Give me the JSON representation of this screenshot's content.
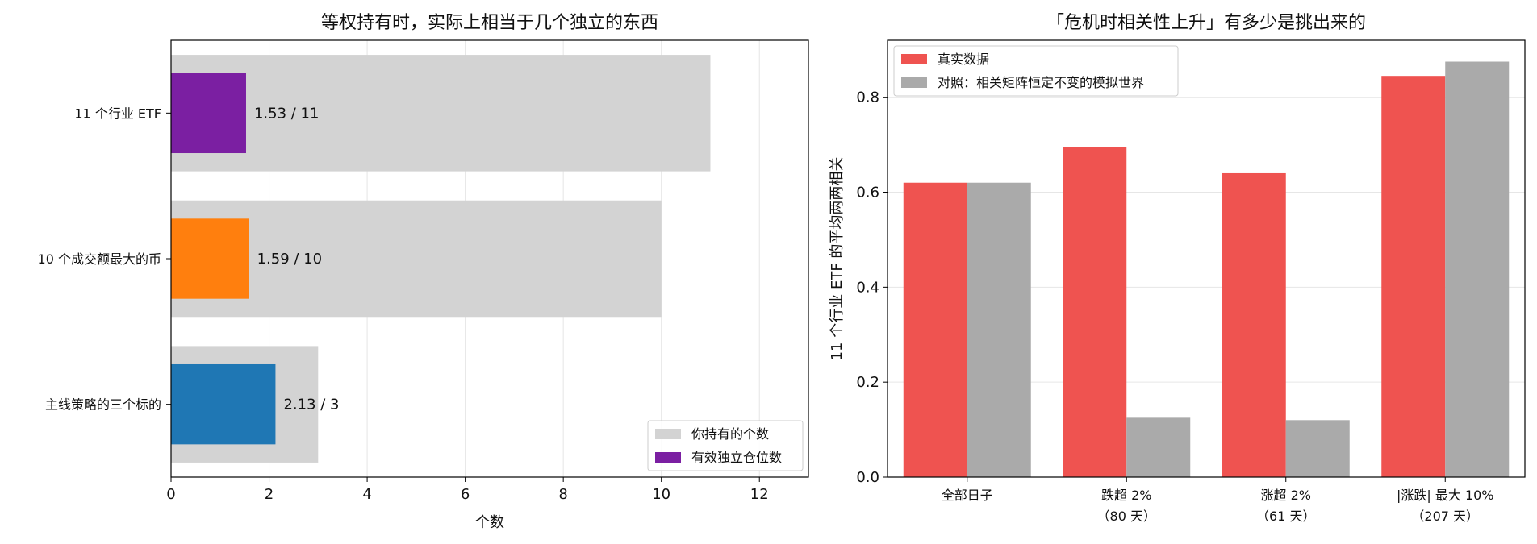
{
  "chart_data": [
    {
      "type": "bar",
      "orientation": "horizontal",
      "title": "等权持有时，实际上相当于几个独立的东西",
      "xlabel": "个数",
      "ylabel": "",
      "xlim": [
        0,
        13
      ],
      "xticks": [
        "0",
        "2",
        "4",
        "6",
        "8",
        "10",
        "12"
      ],
      "grid": "x",
      "legend_position": "lower-right",
      "categories": [
        "11 个行业 ETF",
        "10 个成交额最大的币",
        "主线策略的三个标的"
      ],
      "series": [
        {
          "name": "你持有的个数",
          "values": [
            11,
            10,
            3
          ],
          "color": "#d3d3d3"
        },
        {
          "name": "有效独立仓位数",
          "values": [
            1.53,
            1.59,
            2.13
          ],
          "colors": [
            "#7b1fa2",
            "#ff7f0e",
            "#1f77b4"
          ],
          "legend_color": "#7b1fa2"
        }
      ],
      "data_labels": [
        "1.53 / 11",
        "1.59 / 10",
        "2.13 / 3"
      ]
    },
    {
      "type": "bar",
      "orientation": "vertical",
      "title": "「危机时相关性上升」有多少是挑出来的",
      "xlabel": "",
      "ylabel": "11 个行业 ETF 的平均两两相关",
      "ylim": [
        0,
        0.92
      ],
      "yticks": [
        "0.0",
        "0.2",
        "0.4",
        "0.6",
        "0.8"
      ],
      "grid": "y",
      "legend_position": "upper-left",
      "categories": [
        [
          "全部日子"
        ],
        [
          "跌超 2%",
          "（80 天）"
        ],
        [
          "涨超 2%",
          "（61 天）"
        ],
        [
          "|涨跌| 最大 10%",
          "（207 天）"
        ]
      ],
      "series": [
        {
          "name": "真实数据",
          "values": [
            0.62,
            0.695,
            0.64,
            0.845
          ],
          "color": "#ef5350"
        },
        {
          "name": "对照：相关矩阵恒定不变的模拟世界",
          "values": [
            0.62,
            0.125,
            0.12,
            0.875
          ],
          "color": "#aaaaaa"
        }
      ]
    }
  ]
}
